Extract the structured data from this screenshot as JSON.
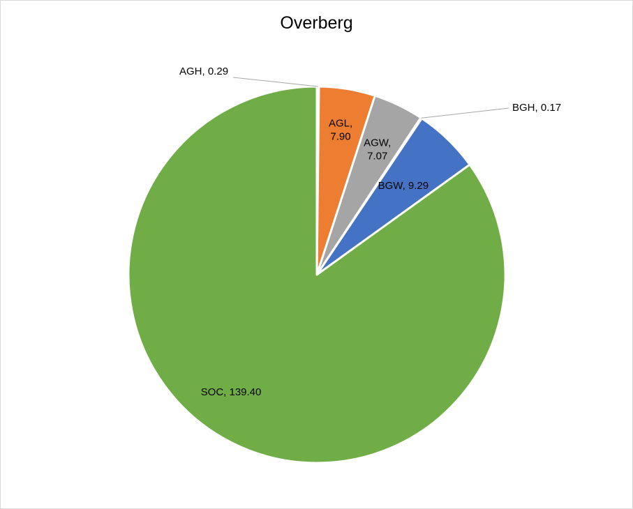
{
  "chart_data": {
    "type": "pie",
    "title": "Overberg",
    "start_angle_deg": 0,
    "direction": "clockwise",
    "slices": [
      {
        "name": "AGH",
        "value": 0.29,
        "value_label": "0.29",
        "color": "#FFC000",
        "label_lines": [
          "AGH, 0.29"
        ],
        "label_style": "callout-left"
      },
      {
        "name": "AGL",
        "value": 7.9,
        "value_label": "7.90",
        "color": "#ED7D31",
        "label_lines": [
          "AGL,",
          "7.90"
        ],
        "label_style": "inside"
      },
      {
        "name": "AGW",
        "value": 7.07,
        "value_label": "7.07",
        "color": "#A5A5A5",
        "label_lines": [
          "AGW,",
          "7.07"
        ],
        "label_style": "inside"
      },
      {
        "name": "BGH",
        "value": 0.17,
        "value_label": "0.17",
        "color": "#264478",
        "label_lines": [
          "BGH, 0.17"
        ],
        "label_style": "callout-right"
      },
      {
        "name": "BGW",
        "value": 9.29,
        "value_label": "9.29",
        "color": "#4472C4",
        "label_lines": [
          "BGW, 9.29"
        ],
        "label_style": "inside"
      },
      {
        "name": "SOC",
        "value": 139.4,
        "value_label": "139.40",
        "color": "#70AD47",
        "label_lines": [
          "SOC, 139.40"
        ],
        "label_style": "inside"
      }
    ]
  }
}
